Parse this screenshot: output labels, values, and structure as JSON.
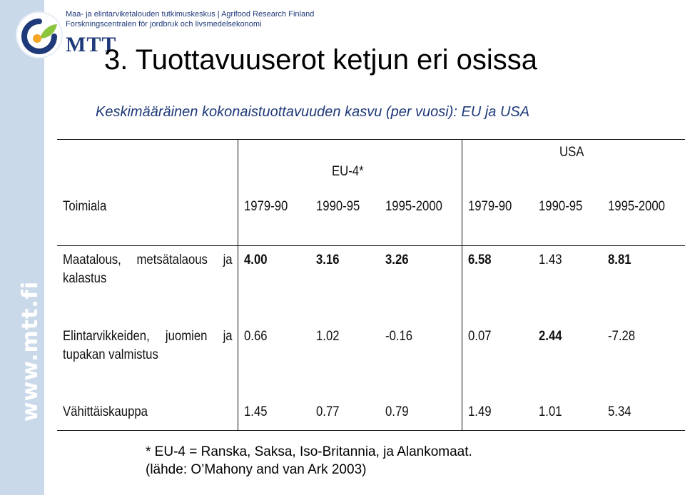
{
  "brand": {
    "org_line1": "Maa- ja elintarviketalouden tutkimuskeskus | Agrifood Research Finland",
    "org_line2": "Forskningscentralen för jordbruk och livsmedelsekonomi",
    "logo_text": "MTT",
    "side_url": "www.mtt.fi",
    "colors": {
      "navy": "#1f3a7a",
      "green": "#8cc63f",
      "orange": "#f5a623",
      "sidebar": "#c9d9ea"
    }
  },
  "slide": {
    "title": "3. Tuottavuuserot ketjun eri osissa",
    "subtitle": "Keskimääräinen kokonaistuottavuuden kasvu (per vuosi): EU ja USA"
  },
  "table": {
    "group_eu": "EU-4*",
    "group_usa": "USA",
    "header": [
      "Toimiala",
      "1979-90",
      "1990-95",
      "1995-2000",
      "1979-90",
      "1990-95",
      "1995-2000"
    ],
    "rows": [
      {
        "label": "Maatalous, metsätalaous ja kalastus",
        "values": [
          "4.00",
          "3.16",
          "3.26",
          "6.58",
          "1.43",
          "8.81"
        ],
        "bold": [
          true,
          true,
          true,
          true,
          false,
          true
        ]
      },
      {
        "label": "Elintarvikkeiden, juomien ja tupakan valmistus",
        "values": [
          "0.66",
          "1.02",
          "-0.16",
          "0.07",
          "2.44",
          "-7.28"
        ],
        "bold": [
          false,
          false,
          false,
          false,
          true,
          false
        ]
      },
      {
        "label": "Vähittäiskauppa",
        "values": [
          "1.45",
          "0.77",
          "0.79",
          "1.49",
          "1.01",
          "5.34"
        ],
        "bold": [
          false,
          false,
          false,
          false,
          false,
          false
        ]
      }
    ]
  },
  "footnotes": {
    "line1": "* EU-4 = Ranska, Saksa, Iso-Britannia, ja Alankomaat.",
    "line2": "(lähde: O’Mahony and van Ark 2003)"
  }
}
